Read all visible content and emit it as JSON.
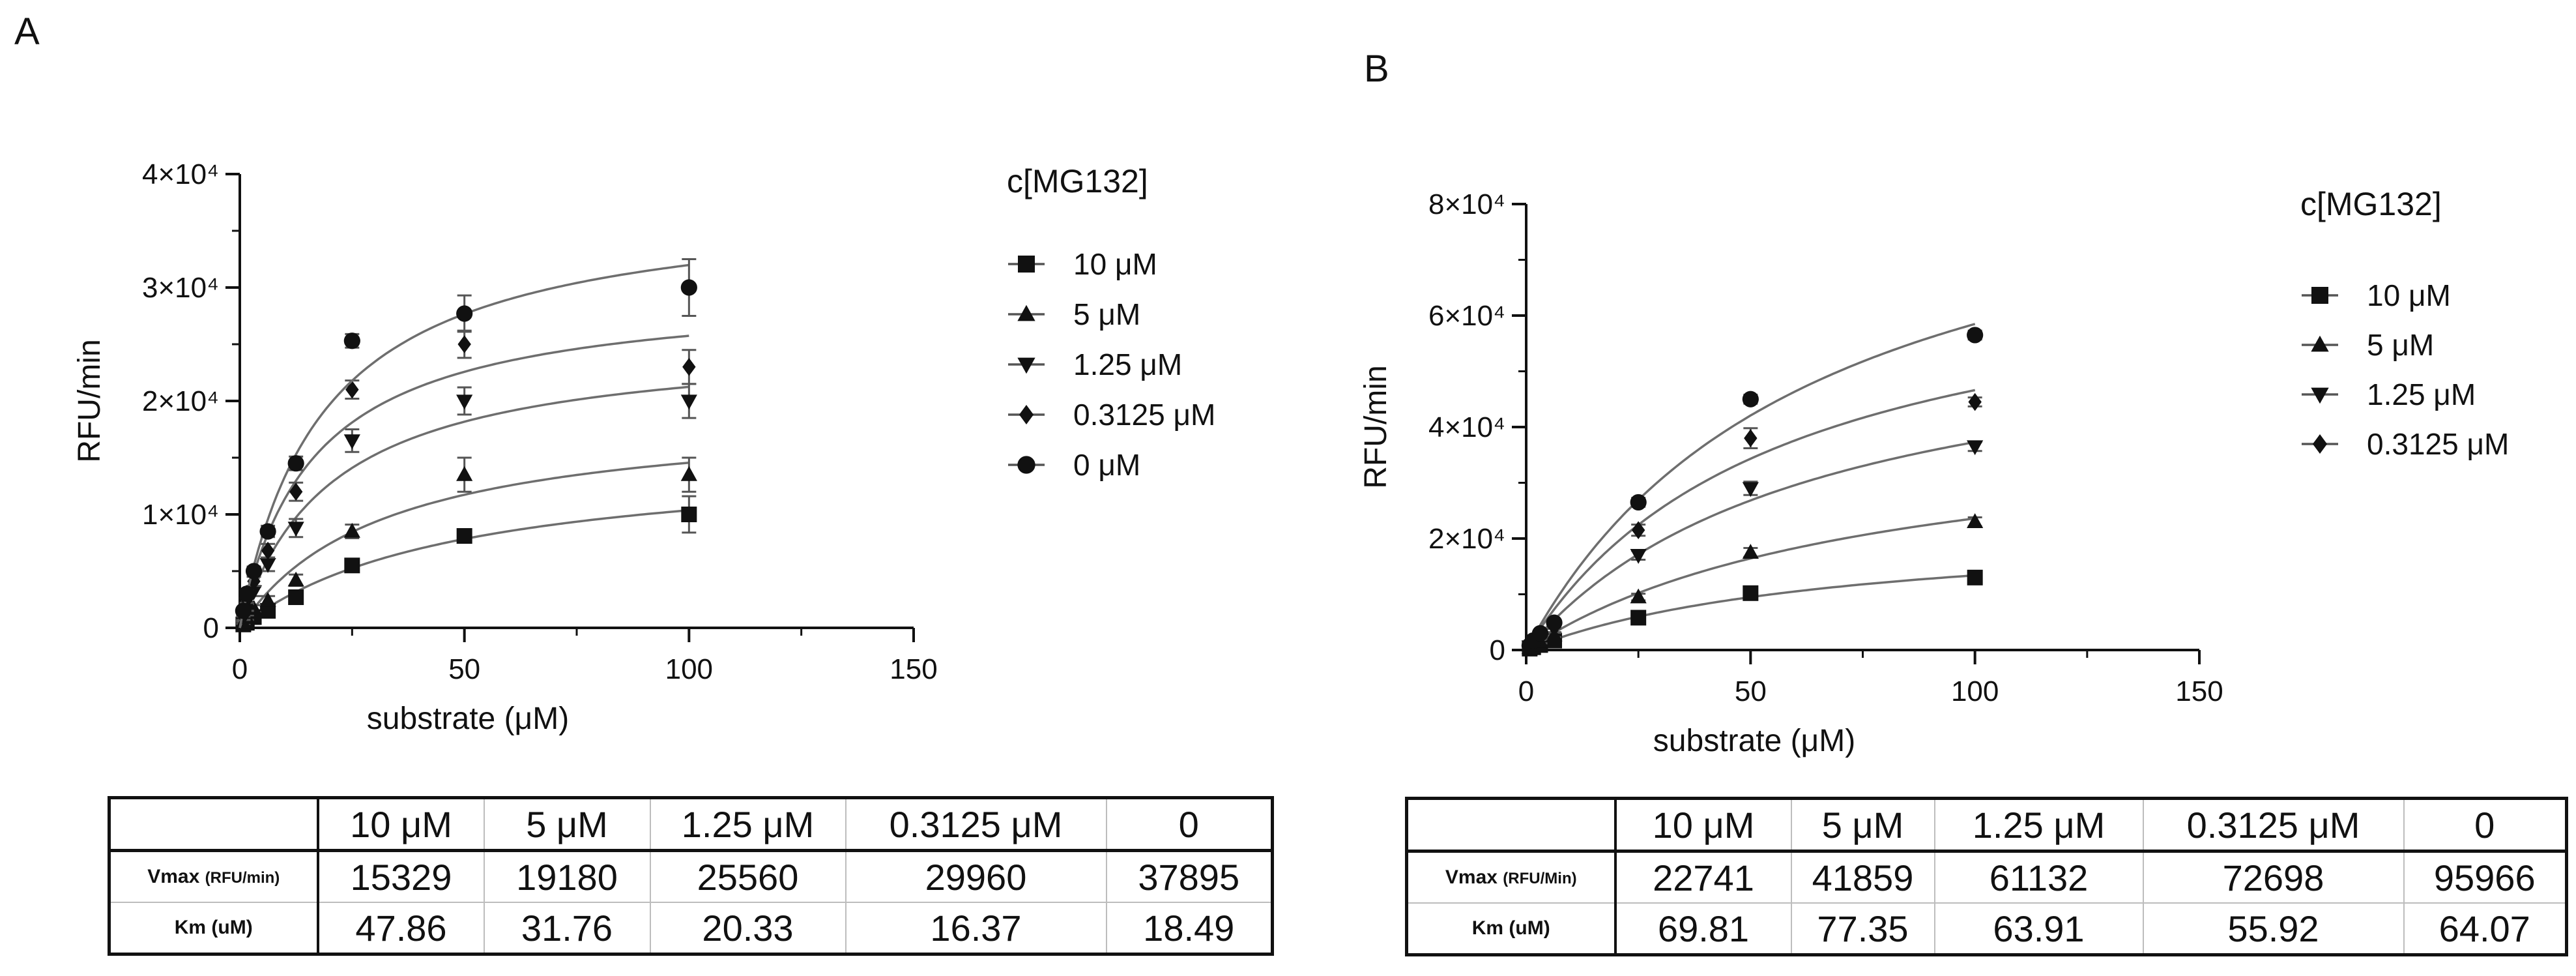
{
  "panels": [
    {
      "letter": "A",
      "chart_data": {
        "type": "scatter",
        "xlabel": "substrate (μM)",
        "ylabel": "RFU/min",
        "xlim": [
          0,
          150
        ],
        "ylim": [
          0,
          40000
        ],
        "xticks": [
          "0",
          "50",
          "100",
          "150"
        ],
        "yticks": [
          "0",
          "1×10⁴",
          "2×10⁴",
          "3×10⁴",
          "4×10⁴"
        ],
        "legend_title": "c[MG132]",
        "legend_position": "right",
        "fit": "michaelis-menten",
        "series": [
          {
            "name": "10 μM",
            "marker": "square",
            "vmax": 15329,
            "km": 47.86,
            "x": [
              0.78,
              1.56,
              3.125,
              6.25,
              12.5,
              25,
              50,
              100
            ],
            "y": [
              300,
              450,
              950,
              1500,
              2700,
              5500,
              8100,
              10000
            ],
            "err": [
              100,
              100,
              200,
              300,
              300,
              400,
              600,
              1600
            ]
          },
          {
            "name": "5 μM",
            "marker": "triangle-up",
            "vmax": 19180,
            "km": 31.76,
            "x": [
              0.78,
              1.56,
              3.125,
              6.25,
              12.5,
              25,
              50,
              100
            ],
            "y": [
              450,
              900,
              1700,
              2400,
              4200,
              8500,
              13500,
              13500
            ],
            "err": [
              100,
              200,
              300,
              400,
              500,
              600,
              1500,
              1500
            ]
          },
          {
            "name": "1.25 μM",
            "marker": "triangle-down",
            "vmax": 25560,
            "km": 20.33,
            "x": [
              0.78,
              1.56,
              3.125,
              6.25,
              12.5,
              25,
              50,
              100
            ],
            "y": [
              900,
              1800,
              3200,
              5600,
              8800,
              16500,
              20000,
              20000
            ],
            "err": [
              200,
              300,
              400,
              600,
              800,
              1000,
              1200,
              1500
            ]
          },
          {
            "name": "0.3125 μM",
            "marker": "diamond",
            "vmax": 29960,
            "km": 16.37,
            "x": [
              0.78,
              1.56,
              3.125,
              6.25,
              12.5,
              25,
              50,
              100
            ],
            "y": [
              1200,
              2500,
              4100,
              6800,
              12000,
              21000,
              25000,
              23000
            ],
            "err": [
              200,
              300,
              400,
              600,
              800,
              800,
              1200,
              1500
            ]
          },
          {
            "name": "0 μM",
            "marker": "circle",
            "vmax": 37895,
            "km": 18.49,
            "x": [
              0.78,
              1.56,
              3.125,
              6.25,
              12.5,
              25,
              50,
              100
            ],
            "y": [
              1500,
              3000,
              5000,
              8500,
              14500,
              25300,
              27700,
              30000
            ],
            "err": [
              200,
              300,
              400,
              500,
              600,
              600,
              1600,
              2500
            ]
          }
        ]
      },
      "table": {
        "header": [
          "",
          "10 μM",
          "5 μM",
          "1.25 μM",
          "0.3125 μM",
          "0"
        ],
        "rows": [
          {
            "label": "Vmax",
            "unit": "(RFU/min)",
            "values": [
              "15329",
              "19180",
              "25560",
              "29960",
              "37895"
            ]
          },
          {
            "label": "Km (uM)",
            "unit": "",
            "values": [
              "47.86",
              "31.76",
              "20.33",
              "16.37",
              "18.49"
            ]
          }
        ]
      }
    },
    {
      "letter": "B",
      "chart_data": {
        "type": "scatter",
        "xlabel": "substrate (μM)",
        "ylabel": "RFU/min",
        "xlim": [
          0,
          150
        ],
        "ylim": [
          0,
          80000
        ],
        "xticks": [
          "0",
          "50",
          "100",
          "150"
        ],
        "yticks": [
          "0",
          "2×10⁴",
          "4×10⁴",
          "6×10⁴",
          "8×10⁴"
        ],
        "legend_title": "c[MG132]",
        "legend_position": "right",
        "fit": "michaelis-menten",
        "series": [
          {
            "name": "10 μM",
            "marker": "square",
            "vmax": 22741,
            "km": 69.81,
            "x": [
              0.78,
              1.56,
              3.125,
              6.25,
              25,
              50,
              100
            ],
            "y": [
              250,
              500,
              900,
              1700,
              5800,
              10200,
              13000
            ],
            "err": [
              100,
              100,
              200,
              300,
              500,
              600,
              800
            ]
          },
          {
            "name": "5 μM",
            "marker": "triangle-up",
            "vmax": 41859,
            "km": 77.35,
            "x": [
              0.78,
              1.56,
              3.125,
              6.25,
              25,
              50,
              100
            ],
            "y": [
              400,
              800,
              1500,
              2700,
              9500,
              17500,
              23000
            ],
            "err": [
              100,
              200,
              300,
              400,
              600,
              800,
              800
            ]
          },
          {
            "name": "1.25 μM",
            "marker": "triangle-down",
            "vmax": 61132,
            "km": 63.91,
            "x": [
              0.78,
              1.56,
              3.125,
              6.25,
              25,
              50,
              100
            ],
            "y": [
              600,
              1300,
              2300,
              3700,
              17000,
              29000,
              36500
            ],
            "err": [
              100,
              200,
              300,
              500,
              800,
              1200,
              800
            ]
          },
          {
            "name": "0.3125 μM",
            "marker": "diamond",
            "vmax": 72698,
            "km": 55.92,
            "x": [
              0.78,
              1.56,
              3.125,
              6.25,
              25,
              50,
              100
            ],
            "y": [
              700,
              1500,
              2700,
              4300,
              21500,
              38000,
              44500
            ],
            "err": [
              100,
              200,
              300,
              500,
              1000,
              1800,
              800
            ]
          },
          {
            "name": "0",
            "marker": "circle",
            "vmax": 95966,
            "km": 64.07,
            "in_legend": false,
            "x": [
              0.78,
              1.56,
              3.125,
              6.25,
              25,
              50,
              100
            ],
            "y": [
              800,
              1700,
              3000,
              4900,
              26500,
              45000,
              56500
            ],
            "err": [
              100,
              200,
              300,
              500,
              800,
              800,
              800
            ]
          }
        ]
      },
      "table": {
        "header": [
          "",
          "10 μM",
          "5 μM",
          "1.25 μM",
          "0.3125 μM",
          "0"
        ],
        "rows": [
          {
            "label": "Vmax",
            "unit": "(RFU/Min)",
            "values": [
              "22741",
              "41859",
              "61132",
              "72698",
              "95966"
            ]
          },
          {
            "label": "Km (uM)",
            "unit": "",
            "values": [
              "69.81",
              "77.35",
              "63.91",
              "55.92",
              "64.07"
            ]
          }
        ]
      }
    }
  ]
}
